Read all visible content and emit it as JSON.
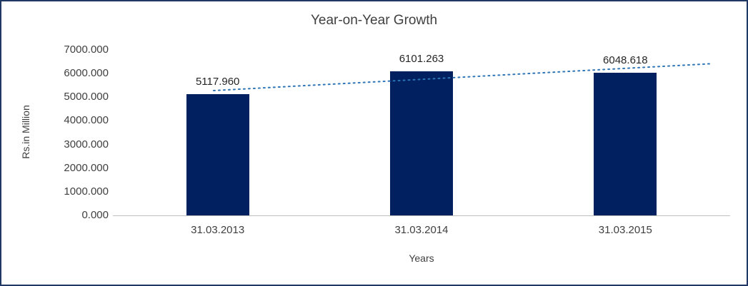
{
  "frame": {
    "border_color": "#1F3864",
    "background": "#FFFFFF"
  },
  "chart_data": {
    "type": "bar",
    "title": "Year-on-Year Growth",
    "xlabel": "Years",
    "ylabel": "Rs.in Million",
    "categories": [
      "31.03.2013",
      "31.03.2014",
      "31.03.2015"
    ],
    "values": [
      5117.96,
      6101.263,
      6048.618
    ],
    "value_labels": [
      "5117.960",
      "6101.263",
      "6048.618"
    ],
    "ylim": [
      0,
      7000
    ],
    "ytick_interval": 1000,
    "ytick_labels": [
      "0.000",
      "1000.000",
      "2000.000",
      "3000.000",
      "4000.000",
      "5000.000",
      "6000.000",
      "7000.000"
    ],
    "grid": false,
    "legend": "none",
    "trendline": {
      "type": "linear",
      "style": "dotted",
      "color": "#2E75B6"
    },
    "colors": {
      "bar": "#002060",
      "title_text": "#404040",
      "tick_text": "#3F3F3F",
      "axis_line": "#BFBFBF"
    }
  }
}
